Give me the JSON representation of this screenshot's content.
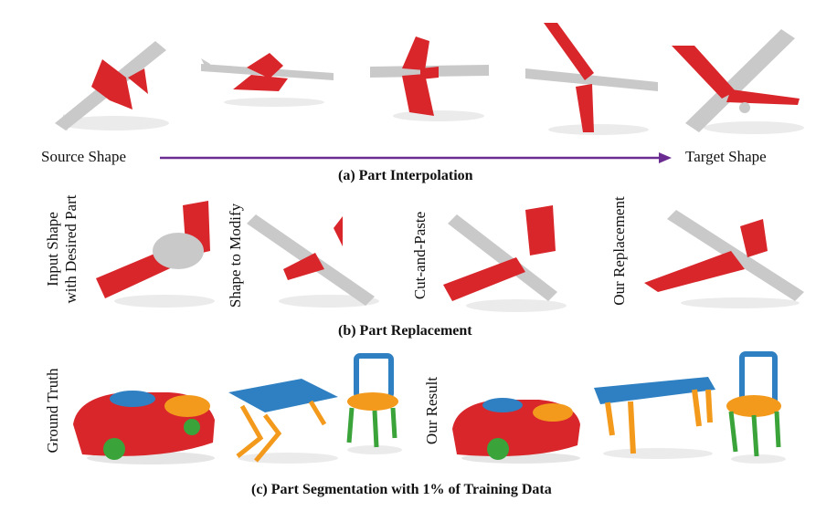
{
  "figure": {
    "row_a": {
      "source_label": "Source Shape",
      "target_label": "Target Shape",
      "caption": "(a) Part Interpolation",
      "arrow_color": "#6a2c91"
    },
    "row_b": {
      "labels": {
        "input": [
          "Input Shape",
          "with Desired Part"
        ],
        "modify": "Shape to Modify",
        "cut": "Cut-and-Paste",
        "ours": "Our Replacement"
      },
      "caption": "(b) Part Replacement"
    },
    "row_c": {
      "labels": {
        "gt": "Ground Truth",
        "ours": "Our Result"
      },
      "caption": "(c) Part Segmentation with 1% of Training Data"
    },
    "colors": {
      "gray": "#c9c9c9",
      "red": "#d8262b",
      "blue": "#2f80c2",
      "orange": "#f39a1d",
      "green": "#3aa33a"
    }
  }
}
